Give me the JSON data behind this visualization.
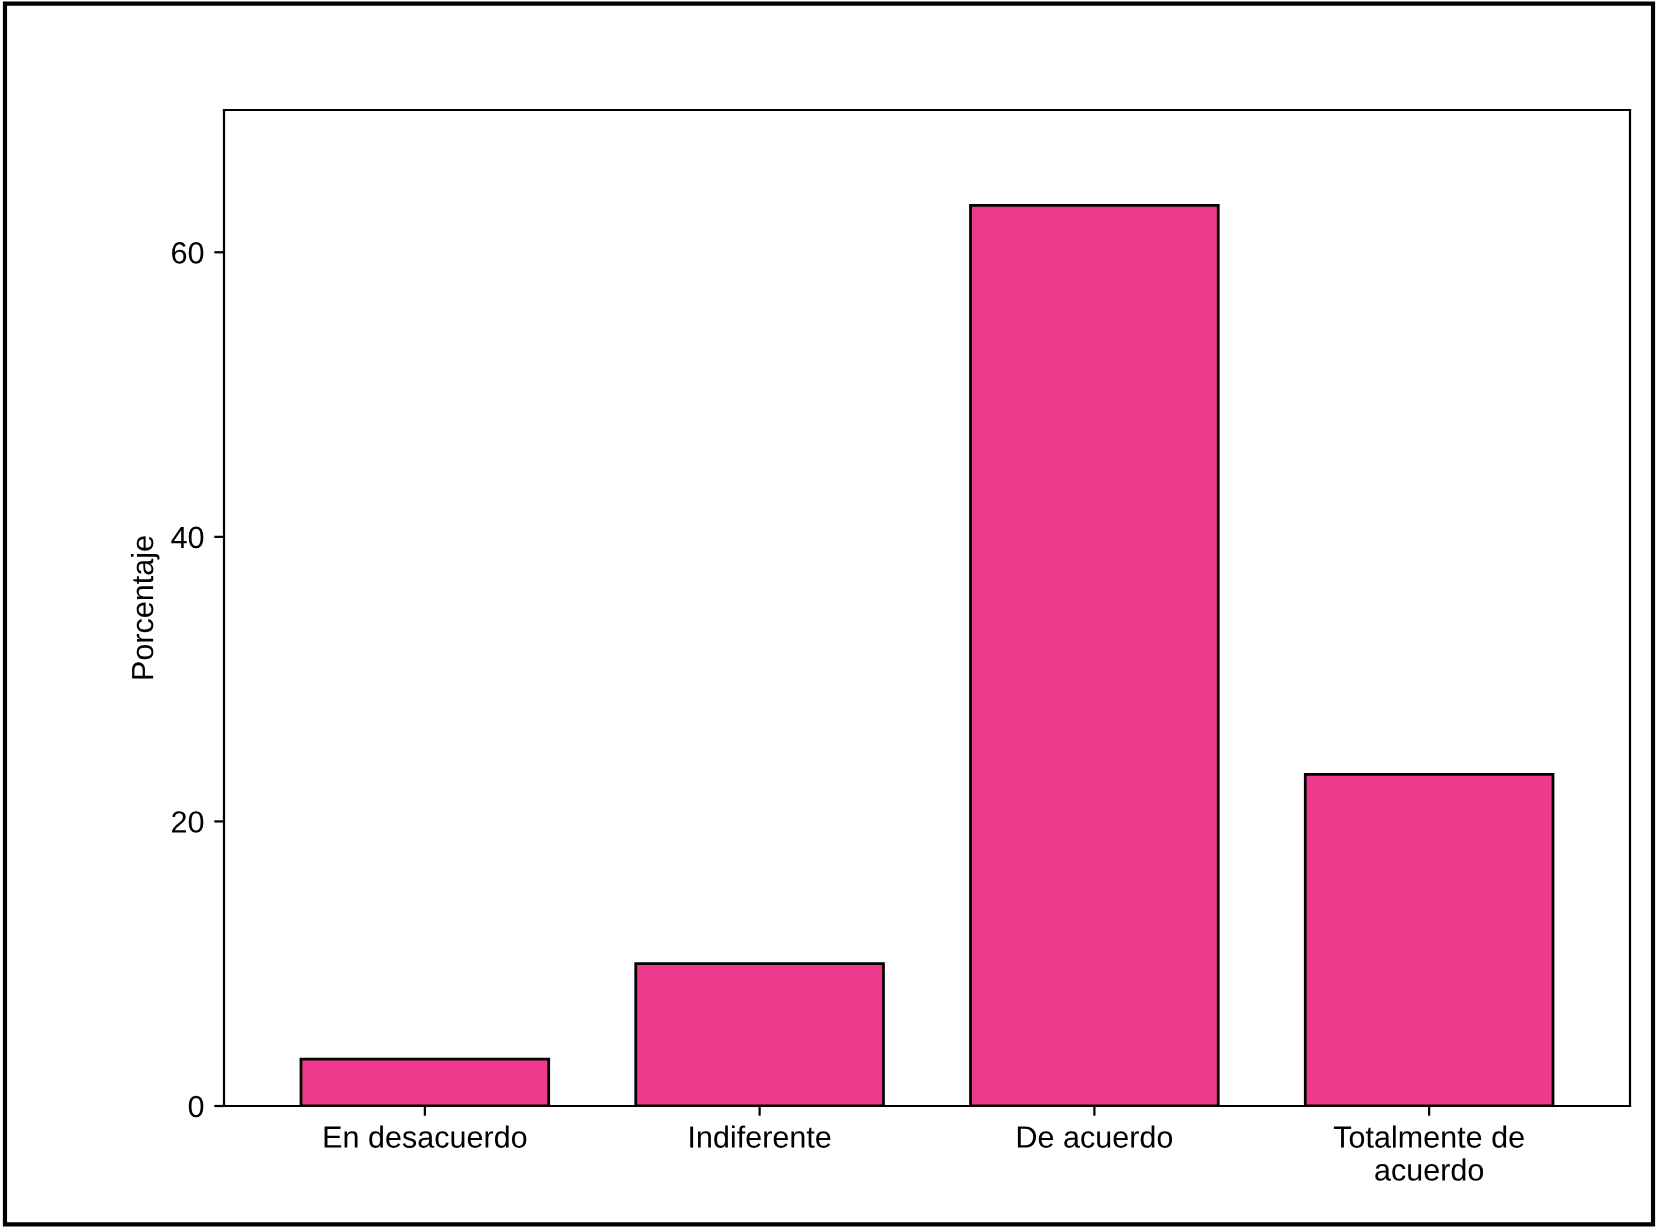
{
  "chart_data": {
    "type": "bar",
    "ylabel": "Porcentaje",
    "categories": [
      "En desacuerdo",
      "Indiferente",
      "De acuerdo",
      "Totalmente de\nacuerdo"
    ],
    "values": [
      3.3,
      10.0,
      63.3,
      23.3
    ],
    "color": "#ee3a8c",
    "ylim": [
      0,
      70
    ],
    "yticks": [
      0,
      20,
      40,
      60
    ],
    "grid": false
  }
}
